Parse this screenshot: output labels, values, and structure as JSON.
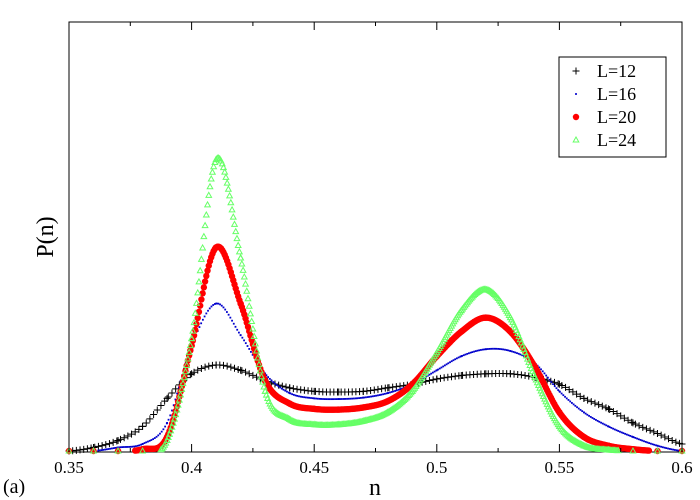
{
  "chart_data": {
    "type": "scatter",
    "panel_label": "(a)",
    "xlabel": "n",
    "ylabel": "P(n)",
    "xlim": [
      0.35,
      0.6
    ],
    "ylim": [
      0,
      1
    ],
    "x_ticks": [
      0.35,
      0.4,
      0.45,
      0.5,
      0.55,
      0.6
    ],
    "x_tick_labels": [
      "0.35",
      "0.4",
      "0.45",
      "0.5",
      "0.55",
      "0.6"
    ],
    "y_ticks_shown": false,
    "grid": false,
    "legend_position": "top-right",
    "series": [
      {
        "name": "L=12",
        "marker": "plus",
        "color": "#000000",
        "x": [
          0.35,
          0.36,
          0.37,
          0.38,
          0.39,
          0.4,
          0.41,
          0.42,
          0.43,
          0.44,
          0.45,
          0.46,
          0.47,
          0.48,
          0.49,
          0.5,
          0.51,
          0.52,
          0.53,
          0.54,
          0.55,
          0.56,
          0.57,
          0.58,
          0.59,
          0.6
        ],
        "values": [
          0.0,
          0.01,
          0.03,
          0.07,
          0.15,
          0.22,
          0.245,
          0.23,
          0.2,
          0.18,
          0.17,
          0.168,
          0.17,
          0.18,
          0.19,
          0.205,
          0.215,
          0.22,
          0.22,
          0.21,
          0.19,
          0.15,
          0.12,
          0.08,
          0.05,
          0.02
        ]
      },
      {
        "name": "L=16",
        "marker": "dot",
        "color": "#0000cc",
        "x": [
          0.35,
          0.36,
          0.37,
          0.38,
          0.39,
          0.4,
          0.41,
          0.42,
          0.43,
          0.44,
          0.45,
          0.46,
          0.47,
          0.48,
          0.49,
          0.5,
          0.51,
          0.52,
          0.53,
          0.54,
          0.55,
          0.56,
          0.57,
          0.58,
          0.59,
          0.6
        ],
        "values": [
          0.0,
          0.0,
          0.01,
          0.02,
          0.08,
          0.3,
          0.42,
          0.33,
          0.22,
          0.165,
          0.15,
          0.148,
          0.152,
          0.165,
          0.19,
          0.23,
          0.27,
          0.29,
          0.285,
          0.25,
          0.17,
          0.11,
          0.07,
          0.04,
          0.015,
          0.0
        ]
      },
      {
        "name": "L=20",
        "marker": "filled-circle",
        "color": "#ff0000",
        "x": [
          0.35,
          0.36,
          0.37,
          0.38,
          0.39,
          0.4,
          0.41,
          0.42,
          0.43,
          0.44,
          0.45,
          0.46,
          0.47,
          0.48,
          0.49,
          0.5,
          0.51,
          0.52,
          0.53,
          0.54,
          0.55,
          0.56,
          0.57,
          0.58,
          0.59,
          0.6
        ],
        "values": [
          0.0,
          0.0,
          0.0,
          0.005,
          0.04,
          0.3,
          0.58,
          0.42,
          0.2,
          0.135,
          0.12,
          0.118,
          0.124,
          0.142,
          0.19,
          0.27,
          0.34,
          0.38,
          0.34,
          0.24,
          0.11,
          0.04,
          0.015,
          0.005,
          0.0,
          0.0
        ]
      },
      {
        "name": "L=24",
        "marker": "open-triangle",
        "color": "#66ff66",
        "x": [
          0.35,
          0.36,
          0.37,
          0.38,
          0.39,
          0.4,
          0.41,
          0.42,
          0.43,
          0.44,
          0.45,
          0.46,
          0.47,
          0.48,
          0.49,
          0.5,
          0.51,
          0.52,
          0.53,
          0.54,
          0.55,
          0.56,
          0.57,
          0.58,
          0.59,
          0.6
        ],
        "values": [
          0.0,
          0.0,
          0.0,
          0.0,
          0.03,
          0.32,
          0.83,
          0.55,
          0.17,
          0.09,
          0.075,
          0.075,
          0.085,
          0.11,
          0.17,
          0.28,
          0.4,
          0.46,
          0.38,
          0.21,
          0.07,
          0.015,
          0.003,
          0.0,
          0.0,
          0.0
        ]
      }
    ]
  }
}
